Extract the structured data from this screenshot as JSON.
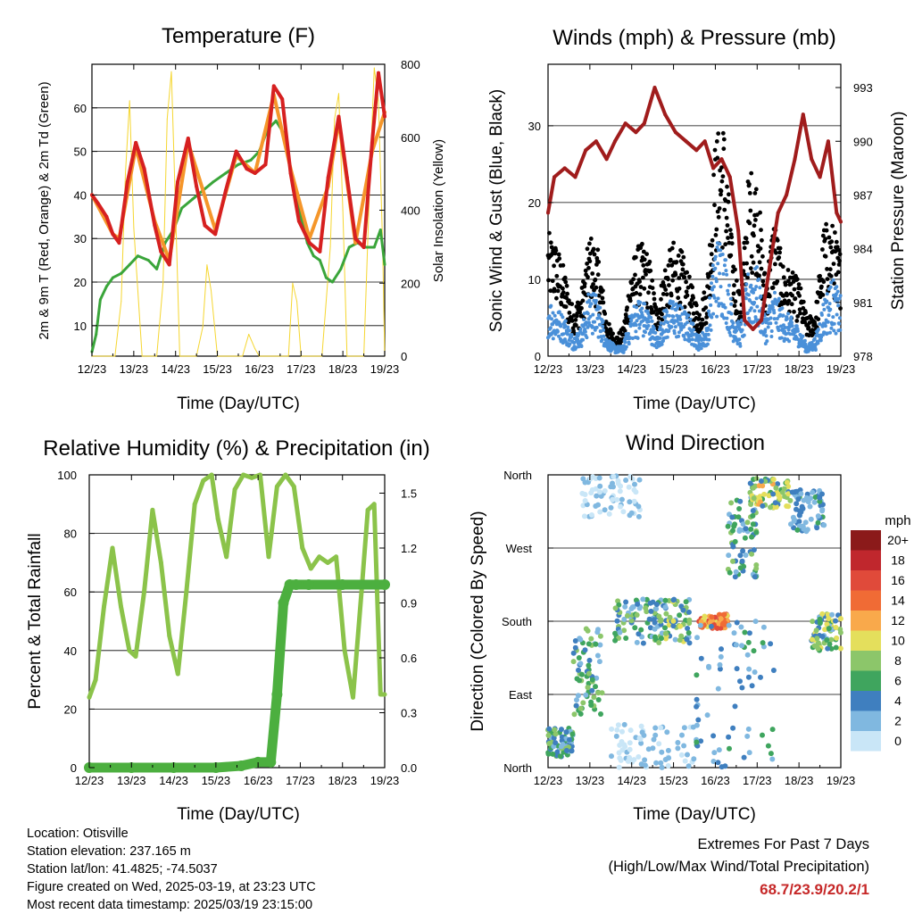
{
  "x_ticks": [
    "12/23",
    "13/23",
    "14/23",
    "15/23",
    "16/23",
    "17/23",
    "18/23",
    "19/23"
  ],
  "info": {
    "location": "Location: Otisville",
    "elevation": "Station elevation: 237.165 m",
    "latlon": "Station lat/lon: 41.4825; -74.5037",
    "created": "Figure created on Wed, 2025-03-19, at 23:23 UTC",
    "recent": "Most recent data timestamp: 2025/03/19 23:15:00"
  },
  "extremes": {
    "title": "Extremes For Past 7 Days",
    "subtitle": "(High/Low/Max Wind/Total Precipitation)",
    "value": "68.7/23.9/20.2/1",
    "color": "#c62828"
  },
  "chart_data": [
    {
      "type": "line",
      "title": "Temperature (F)",
      "xlabel": "Time (Day/UTC)",
      "ylabel": "2m & 9m T (Red, Orange) & 2m Td (Green)",
      "ylabel_right": "Solar Insolation (Yellow)",
      "xlim": [
        0,
        7
      ],
      "ylim": [
        3,
        70
      ],
      "yticks": [
        10,
        20,
        30,
        40,
        50,
        60
      ],
      "ylim_right": [
        0,
        800
      ],
      "yticks_right": [
        0,
        200,
        400,
        600,
        800
      ],
      "grid": true,
      "series": [
        {
          "color": "#d62020",
          "axis": "left",
          "x": [
            0,
            0.15,
            0.35,
            0.5,
            0.65,
            0.85,
            1.05,
            1.25,
            1.5,
            1.65,
            1.85,
            2.05,
            2.3,
            2.5,
            2.7,
            2.95,
            3.2,
            3.45,
            3.7,
            3.9,
            4.15,
            4.35,
            4.55,
            4.75,
            4.95,
            5.2,
            5.45,
            5.65,
            5.9,
            6.1,
            6.3,
            6.5,
            6.7,
            6.85,
            7.0
          ],
          "y": [
            40,
            38,
            35,
            31,
            29,
            43,
            52,
            46,
            33,
            27,
            24,
            43,
            53,
            42,
            33,
            31,
            41,
            50,
            46,
            45,
            47,
            65,
            62,
            45,
            34,
            29,
            27,
            44,
            58,
            44,
            30,
            28,
            52,
            68,
            58
          ]
        },
        {
          "color": "#f5962a",
          "axis": "left",
          "x": [
            0,
            0.5,
            0.65,
            1.05,
            1.5,
            1.85,
            2.3,
            2.95,
            3.45,
            3.9,
            4.35,
            4.75,
            5.2,
            5.65,
            5.9,
            6.3,
            6.7,
            7.0
          ],
          "y": [
            40,
            31,
            30,
            51,
            34,
            25,
            52,
            32,
            49,
            45,
            63,
            46,
            30,
            42,
            57,
            29,
            50,
            59
          ]
        },
        {
          "color": "#3aa53a",
          "axis": "left",
          "x": [
            0,
            0.1,
            0.2,
            0.35,
            0.5,
            0.7,
            0.9,
            1.1,
            1.35,
            1.55,
            1.75,
            1.95,
            2.15,
            2.4,
            2.65,
            2.9,
            3.2,
            3.5,
            3.8,
            4.0,
            4.2,
            4.4,
            4.6,
            4.8,
            5.0,
            5.15,
            5.3,
            5.45,
            5.6,
            5.75,
            5.95,
            6.15,
            6.35,
            6.55,
            6.75,
            6.9,
            7.0
          ],
          "y": [
            4,
            8,
            16,
            19,
            21,
            22,
            24,
            26,
            25,
            23,
            29,
            32,
            37,
            39,
            41,
            43,
            45,
            47,
            48,
            50,
            55,
            57,
            54,
            43,
            35,
            29,
            26,
            25,
            21,
            20,
            23,
            28,
            29,
            28,
            28,
            32,
            24
          ]
        },
        {
          "color": "#f5d630",
          "axis": "right",
          "x": [
            0,
            0.3,
            0.55,
            0.7,
            0.8,
            0.9,
            1.0,
            1.2,
            1.4,
            1.55,
            1.7,
            1.8,
            1.9,
            2.0,
            2.1,
            2.3,
            2.5,
            2.65,
            2.75,
            2.85,
            3.0,
            3.2,
            3.4,
            3.6,
            3.75,
            3.9,
            4.0,
            4.1,
            4.3,
            4.5,
            4.7,
            4.8,
            4.9,
            5.0,
            5.1,
            5.3,
            5.5,
            5.7,
            5.8,
            5.9,
            6.0,
            6.1,
            6.3,
            6.5,
            6.65,
            6.75,
            6.85,
            6.95,
            7.0
          ],
          "y": [
            0,
            0,
            0,
            150,
            500,
            700,
            350,
            0,
            0,
            0,
            200,
            650,
            780,
            400,
            0,
            0,
            0,
            80,
            250,
            180,
            0,
            0,
            0,
            0,
            60,
            20,
            0,
            0,
            0,
            0,
            0,
            200,
            150,
            0,
            0,
            0,
            0,
            300,
            650,
            720,
            400,
            0,
            0,
            0,
            500,
            790,
            700,
            300,
            0
          ]
        }
      ]
    },
    {
      "type": "scatter",
      "title": "Winds (mph) & Pressure (mb)",
      "xlabel": "Time (Day/UTC)",
      "ylabel": "Sonic Wind & Gust (Blue, Black)",
      "ylabel_right": "Station Pressure (Maroon)",
      "xlim": [
        0,
        7
      ],
      "ylim": [
        0,
        38
      ],
      "yticks": [
        0,
        10,
        20,
        30
      ],
      "ylim_right": [
        978,
        994.3
      ],
      "yticks_right": [
        978,
        981,
        984,
        987,
        990,
        993
      ],
      "grid": true,
      "series": [
        {
          "color": "#000000",
          "kind": "gust",
          "axis": "left",
          "x": [
            0,
            0.2,
            0.4,
            0.6,
            0.8,
            1.0,
            1.2,
            1.4,
            1.6,
            1.8,
            2.0,
            2.2,
            2.4,
            2.6,
            2.8,
            3.0,
            3.2,
            3.4,
            3.6,
            3.8,
            4.0,
            4.2,
            4.4,
            4.6,
            4.8,
            5.0,
            5.2,
            5.4,
            5.6,
            5.8,
            6.0,
            6.2,
            6.4,
            6.6,
            6.8,
            7.0
          ],
          "y": [
            13,
            12,
            9,
            5,
            7,
            13,
            11,
            4,
            2,
            3,
            10,
            12,
            11,
            5,
            10,
            12,
            11,
            8,
            5,
            8,
            23,
            25,
            12,
            6,
            20,
            19,
            8,
            15,
            10,
            9,
            8,
            4,
            5,
            14,
            14,
            11
          ]
        },
        {
          "color": "#4a90d9",
          "kind": "wind",
          "axis": "left",
          "x": [
            0,
            0.2,
            0.4,
            0.6,
            0.8,
            1.0,
            1.2,
            1.4,
            1.6,
            1.8,
            2.0,
            2.2,
            2.4,
            2.6,
            2.8,
            3.0,
            3.2,
            3.4,
            3.6,
            3.8,
            4.0,
            4.2,
            4.4,
            4.6,
            4.8,
            5.0,
            5.2,
            5.4,
            5.6,
            5.8,
            6.0,
            6.2,
            6.4,
            6.6,
            6.8,
            7.0
          ],
          "y": [
            6,
            5,
            4,
            2,
            3,
            7,
            6,
            2,
            1,
            1,
            5,
            6,
            5,
            2,
            5,
            6,
            5,
            4,
            2,
            3,
            12,
            12,
            5,
            3,
            9,
            9,
            4,
            7,
            5,
            4,
            3,
            1,
            2,
            6,
            8,
            6
          ]
        },
        {
          "color": "#a01c1c",
          "kind": "pressure",
          "axis": "right",
          "x": [
            0,
            0.15,
            0.4,
            0.65,
            0.9,
            1.15,
            1.4,
            1.6,
            1.85,
            2.1,
            2.3,
            2.55,
            2.8,
            3.05,
            3.3,
            3.55,
            3.75,
            3.95,
            4.15,
            4.35,
            4.55,
            4.7,
            4.9,
            5.1,
            5.3,
            5.5,
            5.7,
            5.9,
            6.1,
            6.3,
            6.5,
            6.7,
            6.9,
            7.0
          ],
          "y": [
            986,
            988,
            988.5,
            988,
            989.5,
            990,
            989,
            990,
            991,
            990.5,
            991,
            993,
            991.5,
            990.5,
            990,
            989.5,
            990,
            988.5,
            989,
            988,
            985,
            980,
            979.5,
            980,
            983,
            986,
            987,
            989,
            991.5,
            989,
            988,
            990,
            986,
            985.5
          ]
        }
      ]
    },
    {
      "type": "line",
      "title": "Relative Humidity (%) & Precipitation (in)",
      "xlabel": "Time (Day/UTC)",
      "ylabel": "Percent & Total Rainfall",
      "xlim": [
        0,
        7
      ],
      "ylim": [
        0,
        100
      ],
      "yticks": [
        0,
        20,
        40,
        60,
        80,
        100
      ],
      "ylim_right": [
        0,
        1.6
      ],
      "yticks_right": [
        "0.0",
        "0.3",
        "0.6",
        "0.9",
        "1.2",
        "1.5"
      ],
      "grid": true,
      "series": [
        {
          "color": "#8bc34a",
          "axis": "left",
          "x": [
            0,
            0.15,
            0.35,
            0.55,
            0.75,
            0.95,
            1.1,
            1.3,
            1.5,
            1.7,
            1.9,
            2.1,
            2.3,
            2.5,
            2.7,
            2.9,
            3.05,
            3.25,
            3.45,
            3.65,
            3.85,
            4.05,
            4.25,
            4.45,
            4.65,
            4.85,
            5.05,
            5.25,
            5.45,
            5.65,
            5.85,
            6.05,
            6.25,
            6.45,
            6.6,
            6.75,
            6.9,
            7.0
          ],
          "y": [
            24,
            30,
            55,
            75,
            55,
            40,
            38,
            60,
            88,
            70,
            45,
            32,
            60,
            90,
            98,
            100,
            85,
            72,
            95,
            100,
            99,
            100,
            72,
            96,
            100,
            96,
            75,
            68,
            72,
            70,
            72,
            40,
            24,
            60,
            88,
            90,
            25,
            25
          ]
        },
        {
          "color": "#4caf3f",
          "axis": "right",
          "x": [
            0,
            1,
            2,
            3,
            3.6,
            4.0,
            4.3,
            4.45,
            4.6,
            4.75,
            4.9,
            5.2,
            6,
            7
          ],
          "y": [
            0,
            0,
            0,
            0,
            0.01,
            0.03,
            0.03,
            0.4,
            0.9,
            1.0,
            1.0,
            1.0,
            1.0,
            1.0
          ]
        }
      ]
    },
    {
      "type": "scatter",
      "title": "Wind Direction",
      "xlabel": "Time (Day/UTC)",
      "ylabel": "Direction (Colored By Speed)",
      "xlim": [
        0,
        7
      ],
      "yticks": [
        "North",
        "East",
        "South",
        "West",
        "North"
      ],
      "legend": {
        "title": "mph",
        "placement": "right",
        "labels": [
          "20+",
          "18",
          "16",
          "14",
          "12",
          "10",
          "8",
          "6",
          "4",
          "2",
          "0"
        ],
        "colors": [
          "#8b1a1a",
          "#c0272d",
          "#e04a3a",
          "#f06b35",
          "#f9a94b",
          "#e4df5c",
          "#8cc66a",
          "#3fa55e",
          "#3f7fbf",
          "#80b8e0",
          "#c9e6f7"
        ]
      },
      "clusters": [
        {
          "x": [
            0.0,
            0.6
          ],
          "dir": [
            0.15,
            0.55
          ],
          "speed": [
            2,
            8
          ]
        },
        {
          "x": [
            0.6,
            1.3
          ],
          "dir": [
            0.7,
            1.9
          ],
          "speed": [
            2,
            9
          ]
        },
        {
          "x": [
            1.6,
            2.6
          ],
          "dir": [
            1.7,
            2.3
          ],
          "speed": [
            1,
            9
          ]
        },
        {
          "x": [
            2.6,
            3.4
          ],
          "dir": [
            1.7,
            2.3
          ],
          "speed": [
            2,
            10
          ]
        },
        {
          "x": [
            3.6,
            4.3
          ],
          "dir": [
            1.9,
            2.1
          ],
          "speed": [
            10,
            16
          ]
        },
        {
          "x": [
            4.3,
            5.0
          ],
          "dir": [
            2.6,
            3.7
          ],
          "speed": [
            1,
            8
          ]
        },
        {
          "x": [
            4.8,
            5.8
          ],
          "dir": [
            3.55,
            3.95
          ],
          "speed": [
            4,
            12
          ]
        },
        {
          "x": [
            5.8,
            6.6
          ],
          "dir": [
            3.2,
            3.8
          ],
          "speed": [
            1,
            6
          ]
        },
        {
          "x": [
            6.3,
            7.0
          ],
          "dir": [
            1.6,
            2.1
          ],
          "speed": [
            2,
            11
          ]
        },
        {
          "x": [
            0.8,
            2.2
          ],
          "dir": [
            3.4,
            4.0
          ],
          "speed": [
            0,
            2
          ]
        },
        {
          "x": [
            1.5,
            3.5
          ],
          "dir": [
            0.0,
            0.6
          ],
          "speed": [
            0,
            2
          ]
        },
        {
          "x": [
            3.5,
            5.5
          ],
          "dir": [
            0.0,
            2.0
          ],
          "speed": [
            1,
            6
          ]
        }
      ]
    }
  ]
}
